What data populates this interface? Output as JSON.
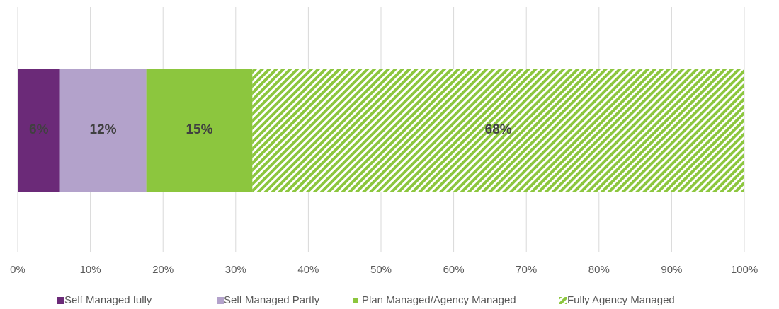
{
  "chart_data": {
    "type": "stacked_barh",
    "series": [
      {
        "name": "Self Managed fully",
        "color": "#6b2a78",
        "values": [
          5.8
        ],
        "value_labels": [
          "6%"
        ]
      },
      {
        "name": "Self Managed Partly",
        "color": "#b3a2cb",
        "values": [
          11.9
        ],
        "value_labels": [
          "12%"
        ]
      },
      {
        "name": "Plan Managed/Agency Managed",
        "color": "#8cc63e",
        "values": [
          14.6
        ],
        "value_labels": [
          "15%"
        ]
      },
      {
        "name": "Fully Agency Managed",
        "color": "#8cc63e",
        "pattern": "hatch",
        "values": [
          67.7
        ],
        "value_labels": [
          "68%"
        ]
      }
    ],
    "xlim": [
      0,
      100
    ],
    "xticks": [
      {
        "value": 0,
        "label": "0%"
      },
      {
        "value": 10,
        "label": "10%"
      },
      {
        "value": 20,
        "label": "20%"
      },
      {
        "value": 30,
        "label": "30%"
      },
      {
        "value": 40,
        "label": "40%"
      },
      {
        "value": 50,
        "label": "50%"
      },
      {
        "value": 60,
        "label": "60%"
      },
      {
        "value": 70,
        "label": "70%"
      },
      {
        "value": 80,
        "label": "80%"
      },
      {
        "value": 90,
        "label": "90%"
      },
      {
        "value": 100,
        "label": "100%"
      }
    ],
    "grid": true,
    "legend": "bottom"
  }
}
